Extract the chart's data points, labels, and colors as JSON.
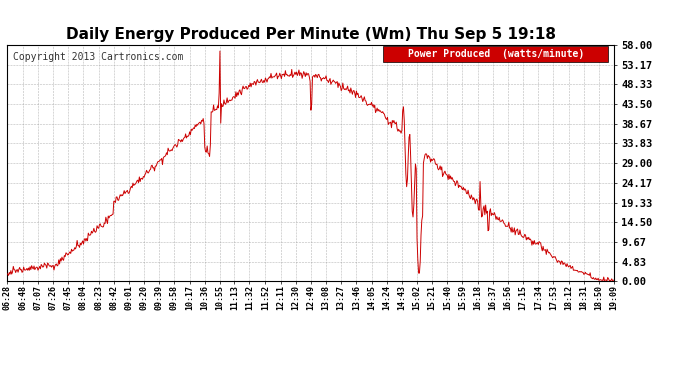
{
  "title": "Daily Energy Produced Per Minute (Wm) Thu Sep 5 19:18",
  "copyright": "Copyright 2013 Cartronics.com",
  "legend_label": "Power Produced  (watts/minute)",
  "legend_bg": "#cc0000",
  "legend_text_color": "#ffffff",
  "line_color": "#cc0000",
  "bg_color": "#ffffff",
  "grid_color": "#999999",
  "title_color": "#000000",
  "ymax": 58.0,
  "yticks": [
    0.0,
    4.83,
    9.67,
    14.5,
    19.33,
    24.17,
    29.0,
    33.83,
    38.67,
    43.5,
    48.33,
    53.17,
    58.0
  ],
  "xtick_labels": [
    "06:28",
    "06:48",
    "07:07",
    "07:26",
    "07:45",
    "08:04",
    "08:23",
    "08:42",
    "09:01",
    "09:20",
    "09:39",
    "09:58",
    "10:17",
    "10:36",
    "10:55",
    "11:13",
    "11:32",
    "11:52",
    "12:11",
    "12:30",
    "12:49",
    "13:08",
    "13:27",
    "13:46",
    "14:05",
    "14:24",
    "14:43",
    "15:02",
    "15:21",
    "15:40",
    "15:59",
    "16:18",
    "16:37",
    "16:56",
    "17:15",
    "17:34",
    "17:53",
    "18:12",
    "18:31",
    "18:50",
    "19:09"
  ]
}
